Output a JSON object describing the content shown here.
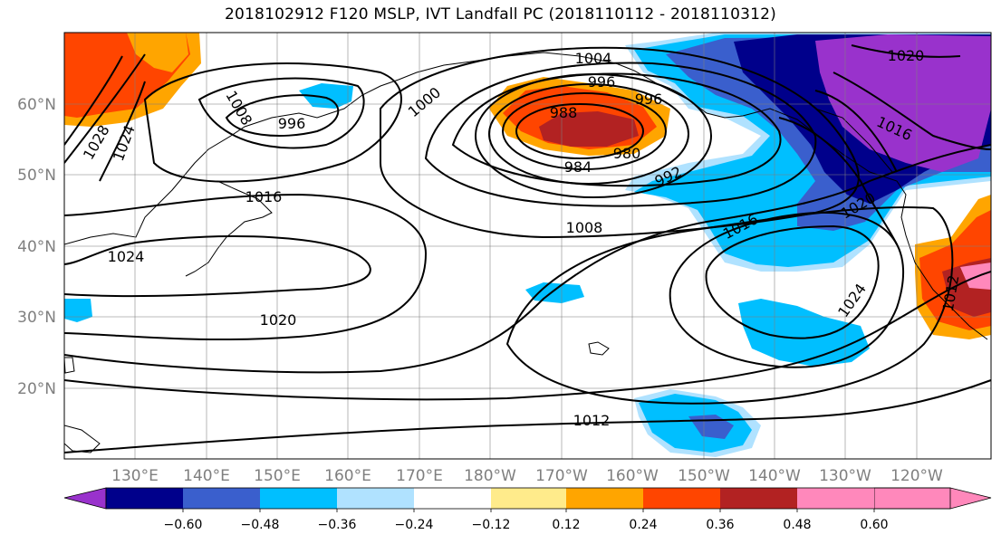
{
  "title": "2018102912 F120 MSLP, IVT Landfall PC (2018110112 - 2018110312)",
  "map": {
    "lat_ticks": [
      "20°N",
      "30°N",
      "40°N",
      "50°N",
      "60°N"
    ],
    "lon_ticks": [
      "130°E",
      "140°E",
      "150°E",
      "160°E",
      "170°E",
      "180°W",
      "170°W",
      "160°W",
      "150°W",
      "140°W",
      "130°W",
      "120°W"
    ],
    "isobar_labels": [
      "1004",
      "996",
      "988",
      "984",
      "980",
      "996",
      "1000",
      "1008",
      "996",
      "1028",
      "1024",
      "1016",
      "1024",
      "1020",
      "992",
      "1008",
      "1016",
      "1016",
      "1020",
      "1020",
      "1024",
      "1012",
      "1012"
    ]
  },
  "colorbar": {
    "tick_labels": [
      "−0.60",
      "−0.48",
      "−0.36",
      "−0.24",
      "−0.12",
      "0.12",
      "0.24",
      "0.36",
      "0.48",
      "0.60"
    ],
    "colors": [
      "#9932cc",
      "#00008b",
      "#3a5fcd",
      "#00bfff",
      "#b0e2ff",
      "#ffffff",
      "#ffeb8b",
      "#ffa500",
      "#ff4500",
      "#b22222",
      "#ff88bb"
    ]
  }
}
